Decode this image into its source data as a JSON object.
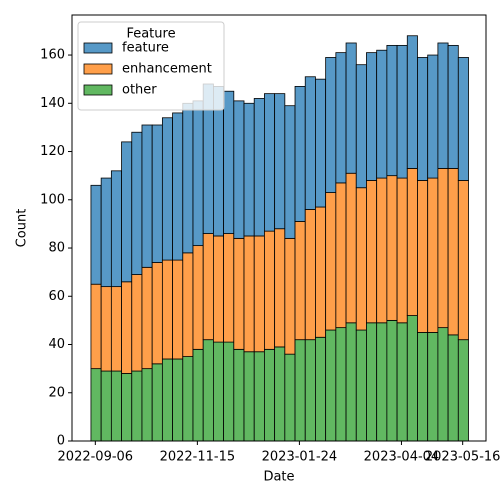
{
  "chart_data": {
    "type": "histogram",
    "xlabel": "Date",
    "ylabel": "Count",
    "legend_title": "Feature",
    "legend": "upper left",
    "stacked": true,
    "bins": [
      "2022-09-03",
      "2022-09-10",
      "2022-09-17",
      "2022-09-24",
      "2022-10-01",
      "2022-10-08",
      "2022-10-15",
      "2022-10-22",
      "2022-10-29",
      "2022-11-05",
      "2022-11-12",
      "2022-11-19",
      "2022-11-26",
      "2022-12-03",
      "2022-12-10",
      "2022-12-17",
      "2022-12-24",
      "2022-12-31",
      "2023-01-07",
      "2023-01-14",
      "2023-01-21",
      "2023-01-28",
      "2023-02-04",
      "2023-02-11",
      "2023-02-18",
      "2023-02-25",
      "2023-03-04",
      "2023-03-11",
      "2023-03-18",
      "2023-03-25",
      "2023-04-01",
      "2023-04-08",
      "2023-04-15",
      "2023-04-22",
      "2023-04-29",
      "2023-05-06",
      "2023-05-13",
      "2023-05-20"
    ],
    "series": [
      {
        "name": "feature",
        "color": "#5799c7",
        "values": [
          41,
          45,
          48,
          58,
          59,
          59,
          57,
          59,
          61,
          62,
          60,
          62,
          62,
          59,
          57,
          55,
          57,
          57,
          56,
          55,
          56,
          55,
          53,
          56,
          54,
          54,
          51,
          53,
          53,
          54,
          55,
          55,
          51,
          51,
          52,
          51,
          51
        ]
      },
      {
        "name": "enhancement",
        "color": "#ff9f4a",
        "values": [
          35,
          35,
          35,
          38,
          40,
          42,
          42,
          41,
          41,
          43,
          43,
          44,
          44,
          45,
          46,
          48,
          48,
          49,
          49,
          48,
          49,
          54,
          54,
          57,
          60,
          62,
          59,
          59,
          60,
          60,
          60,
          61,
          63,
          64,
          66,
          69,
          66
        ]
      },
      {
        "name": "other",
        "color": "#61b861",
        "values": [
          30,
          29,
          29,
          28,
          29,
          30,
          32,
          34,
          34,
          35,
          38,
          42,
          41,
          41,
          38,
          37,
          37,
          38,
          39,
          36,
          42,
          42,
          43,
          46,
          47,
          49,
          46,
          49,
          49,
          50,
          49,
          52,
          45,
          45,
          47,
          44,
          42
        ]
      }
    ],
    "xlim": [
      "2022-08-21",
      "2023-06-01"
    ],
    "xticks": [
      "2022-09-06",
      "2022-11-15",
      "2023-01-24",
      "2023-04-04",
      "2023-05-16"
    ],
    "ylim": [
      0,
      176.6
    ],
    "yticks": [
      0,
      20,
      40,
      60,
      80,
      100,
      120,
      140,
      160
    ]
  }
}
